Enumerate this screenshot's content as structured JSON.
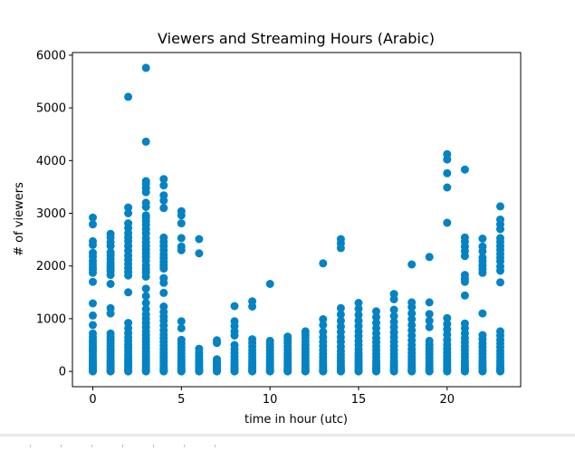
{
  "chart_data": {
    "type": "scatter",
    "title": "Viewers and Streaming Hours (Arabic)",
    "xlabel": "time in hour (utc)",
    "ylabel": "# of viewers",
    "xlim": [
      -1.15,
      24.15
    ],
    "ylim": [
      -290,
      6050
    ],
    "xticks": [
      0,
      5,
      10,
      15,
      20
    ],
    "yticks": [
      0,
      1000,
      2000,
      3000,
      4000,
      5000,
      6000
    ],
    "grid": false,
    "marker_color": "#0383C4",
    "points_by_hour": [
      {
        "hour": 0,
        "viewers": [
          2920,
          2790,
          2470,
          2400,
          2250,
          2180,
          2100,
          2040,
          1980,
          1930,
          1870,
          1700,
          1290,
          1060,
          880,
          720,
          650,
          590,
          540,
          480,
          430,
          380,
          330,
          280,
          230,
          190,
          150,
          110,
          80,
          50,
          25,
          10,
          0
        ]
      },
      {
        "hour": 1,
        "viewers": [
          2610,
          2540,
          2450,
          2380,
          2260,
          2200,
          2130,
          2060,
          2000,
          1950,
          1900,
          1830,
          1660,
          1200,
          1100,
          720,
          660,
          600,
          540,
          480,
          420,
          370,
          320,
          270,
          220,
          180,
          140,
          100,
          70,
          40,
          20,
          5,
          0
        ]
      },
      {
        "hour": 2,
        "viewers": [
          5210,
          3110,
          3000,
          2810,
          2720,
          2620,
          2540,
          2470,
          2380,
          2290,
          2200,
          2120,
          2040,
          1960,
          1890,
          1820,
          1500,
          920,
          820,
          730,
          650,
          580,
          510,
          450,
          390,
          330,
          280,
          230,
          180,
          140,
          100,
          60,
          30,
          10,
          0
        ]
      },
      {
        "hour": 3,
        "viewers": [
          5760,
          4360,
          3610,
          3560,
          3480,
          3400,
          3200,
          3120,
          2960,
          2920,
          2850,
          2780,
          2700,
          2620,
          2530,
          2450,
          2380,
          2310,
          2240,
          2170,
          2100,
          2010,
          1940,
          1880,
          1800,
          1570,
          1430,
          1300,
          1180,
          1080,
          1000,
          920,
          840,
          760,
          690,
          620,
          560,
          500,
          440,
          380,
          330,
          280,
          230,
          180,
          140,
          100,
          60,
          30,
          10,
          0
        ]
      },
      {
        "hour": 4,
        "viewers": [
          3650,
          3530,
          3340,
          3240,
          3100,
          2540,
          2460,
          2380,
          2300,
          2220,
          2150,
          2080,
          2010,
          1950,
          1770,
          1680,
          1490,
          1230,
          1130,
          1040,
          960,
          870,
          780,
          700,
          630,
          560,
          490,
          420,
          360,
          300,
          250,
          200,
          150,
          100,
          60,
          30,
          10,
          0
        ]
      },
      {
        "hour": 5,
        "viewers": [
          3040,
          2960,
          2810,
          2530,
          2370,
          2300,
          950,
          820,
          600,
          530,
          460,
          400,
          340,
          280,
          230,
          180,
          140,
          100,
          60,
          30,
          10,
          0
        ]
      },
      {
        "hour": 6,
        "viewers": [
          2510,
          2240,
          430,
          360,
          300,
          240,
          190,
          150,
          110,
          70,
          40,
          20,
          5,
          0
        ]
      },
      {
        "hour": 7,
        "viewers": [
          590,
          540,
          230,
          180,
          140,
          110,
          80,
          50,
          30,
          10,
          0
        ]
      },
      {
        "hour": 8,
        "viewers": [
          1240,
          950,
          860,
          760,
          680,
          500,
          420,
          350,
          280,
          220,
          170,
          120,
          80,
          50,
          20,
          5,
          0
        ]
      },
      {
        "hour": 9,
        "viewers": [
          1330,
          1230,
          610,
          540,
          470,
          400,
          340,
          280,
          220,
          170,
          130,
          90,
          60,
          30,
          10,
          0
        ]
      },
      {
        "hour": 10,
        "viewers": [
          1660,
          580,
          520,
          460,
          400,
          340,
          280,
          230,
          180,
          130,
          90,
          60,
          30,
          10,
          0
        ]
      },
      {
        "hour": 11,
        "viewers": [
          660,
          600,
          540,
          470,
          410,
          350,
          290,
          240,
          190,
          140,
          100,
          60,
          30,
          10,
          0
        ]
      },
      {
        "hour": 12,
        "viewers": [
          760,
          700,
          640,
          570,
          500,
          430,
          370,
          310,
          250,
          200,
          150,
          110,
          70,
          40,
          15,
          0
        ]
      },
      {
        "hour": 13,
        "viewers": [
          2050,
          990,
          880,
          750,
          650,
          560,
          480,
          400,
          330,
          270,
          210,
          160,
          110,
          70,
          40,
          15,
          0
        ]
      },
      {
        "hour": 14,
        "viewers": [
          2510,
          2430,
          2340,
          1200,
          1080,
          960,
          850,
          750,
          650,
          560,
          470,
          390,
          320,
          260,
          200,
          150,
          100,
          60,
          30,
          10,
          0
        ]
      },
      {
        "hour": 15,
        "viewers": [
          1300,
          1190,
          1070,
          960,
          860,
          760,
          670,
          580,
          500,
          420,
          350,
          290,
          230,
          180,
          130,
          90,
          50,
          20,
          0
        ]
      },
      {
        "hour": 16,
        "viewers": [
          1140,
          1030,
          920,
          820,
          720,
          630,
          550,
          470,
          400,
          330,
          270,
          210,
          160,
          110,
          70,
          40,
          15,
          0
        ]
      },
      {
        "hour": 17,
        "viewers": [
          1470,
          1370,
          1170,
          1050,
          940,
          840,
          740,
          650,
          560,
          480,
          400,
          330,
          270,
          210,
          160,
          110,
          70,
          40,
          15,
          0
        ]
      },
      {
        "hour": 18,
        "viewers": [
          2030,
          1310,
          1220,
          1100,
          990,
          880,
          780,
          680,
          590,
          500,
          420,
          350,
          280,
          220,
          170,
          120,
          80,
          40,
          15,
          0
        ]
      },
      {
        "hour": 19,
        "viewers": [
          2170,
          1310,
          1090,
          960,
          840,
          580,
          510,
          440,
          380,
          320,
          260,
          210,
          160,
          110,
          70,
          40,
          15,
          0
        ]
      },
      {
        "hour": 20,
        "viewers": [
          4120,
          4020,
          3760,
          3490,
          2820,
          1010,
          900,
          800,
          700,
          600,
          510,
          430,
          360,
          290,
          230,
          180,
          130,
          90,
          50,
          20,
          0
        ]
      },
      {
        "hour": 21,
        "viewers": [
          3830,
          2540,
          2460,
          2370,
          2280,
          2190,
          1830,
          1760,
          1700,
          1440,
          910,
          820,
          720,
          630,
          550,
          470,
          400,
          330,
          270,
          210,
          160,
          110,
          70,
          40,
          15,
          0
        ]
      },
      {
        "hour": 22,
        "viewers": [
          2520,
          2370,
          2280,
          2160,
          2090,
          2010,
          1940,
          1870,
          1100,
          690,
          610,
          530,
          460,
          390,
          330,
          270,
          210,
          160,
          110,
          70,
          40,
          15,
          0
        ]
      },
      {
        "hour": 23,
        "viewers": [
          3130,
          2880,
          2790,
          2700,
          2530,
          2460,
          2380,
          2310,
          2230,
          2160,
          2090,
          1990,
          1910,
          1690,
          760,
          680,
          600,
          530,
          460,
          390,
          330,
          270,
          210,
          160,
          110,
          70,
          40,
          15,
          0
        ]
      }
    ]
  }
}
